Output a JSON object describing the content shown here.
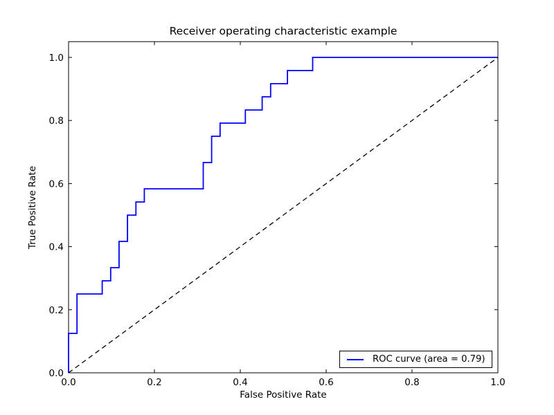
{
  "chart": {
    "title": "Receiver operating characteristic example",
    "xlabel": "False Positive Rate",
    "ylabel": "True Positive Rate",
    "legend_label": "ROC curve (area = 0.79)",
    "colors": {
      "roc_curve": "#0000ff",
      "chance_line": "#000000",
      "axes": "#000000",
      "background": "#ffffff"
    }
  },
  "chart_data": {
    "type": "line",
    "title": "Receiver operating characteristic example",
    "xlabel": "False Positive Rate",
    "ylabel": "True Positive Rate",
    "xlim": [
      0.0,
      1.0
    ],
    "ylim": [
      0.0,
      1.05
    ],
    "x_ticks": [
      "0.0",
      "0.2",
      "0.4",
      "0.6",
      "0.8",
      "1.0"
    ],
    "y_ticks": [
      "0.0",
      "0.2",
      "0.4",
      "0.6",
      "0.8",
      "1.0"
    ],
    "grid": false,
    "legend_position": "lower right",
    "auc": 0.79,
    "series": [
      {
        "name": "ROC curve (area = 0.79)",
        "color": "#0000ff",
        "style": "solid",
        "points": [
          [
            0.0,
            0.0
          ],
          [
            0.0,
            0.125
          ],
          [
            0.0196,
            0.125
          ],
          [
            0.0196,
            0.25
          ],
          [
            0.0784,
            0.25
          ],
          [
            0.0784,
            0.2917
          ],
          [
            0.098,
            0.2917
          ],
          [
            0.098,
            0.3333
          ],
          [
            0.1176,
            0.3333
          ],
          [
            0.1176,
            0.4167
          ],
          [
            0.1373,
            0.4167
          ],
          [
            0.1373,
            0.5
          ],
          [
            0.1569,
            0.5
          ],
          [
            0.1569,
            0.5417
          ],
          [
            0.1765,
            0.5417
          ],
          [
            0.1765,
            0.5833
          ],
          [
            0.3137,
            0.5833
          ],
          [
            0.3137,
            0.6667
          ],
          [
            0.3333,
            0.6667
          ],
          [
            0.3333,
            0.75
          ],
          [
            0.3529,
            0.75
          ],
          [
            0.3529,
            0.7917
          ],
          [
            0.4118,
            0.7917
          ],
          [
            0.4118,
            0.8333
          ],
          [
            0.451,
            0.8333
          ],
          [
            0.451,
            0.875
          ],
          [
            0.4706,
            0.875
          ],
          [
            0.4706,
            0.9167
          ],
          [
            0.5098,
            0.9167
          ],
          [
            0.5098,
            0.9583
          ],
          [
            0.5686,
            0.9583
          ],
          [
            0.5686,
            1.0
          ],
          [
            1.0,
            1.0
          ]
        ]
      },
      {
        "name": "chance diagonal",
        "color": "#000000",
        "style": "dashed",
        "points": [
          [
            0.0,
            0.0
          ],
          [
            1.0,
            1.0
          ]
        ]
      }
    ]
  }
}
